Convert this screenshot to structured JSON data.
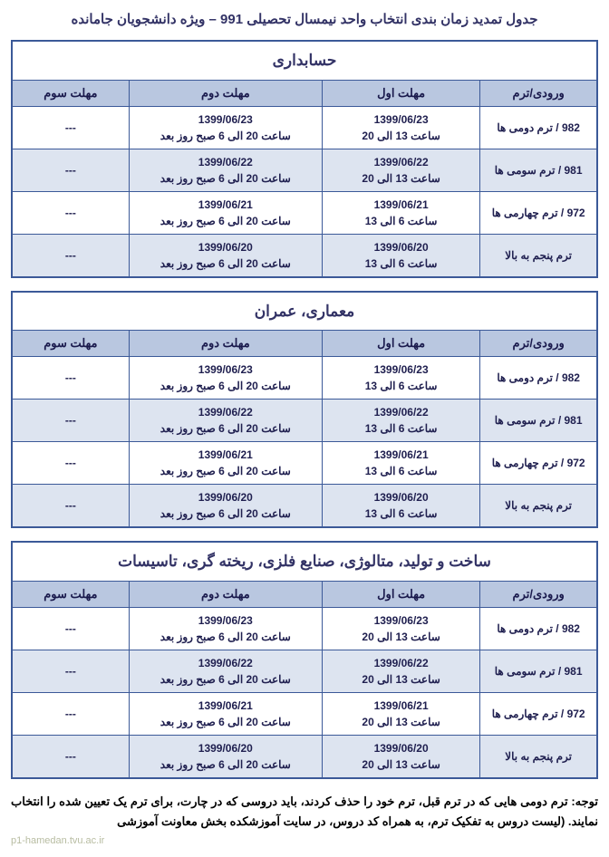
{
  "page_title": "جدول تمدید زمان بندی انتخاب واحد نیمسال تحصیلی 991 – ویژه دانشجویان جامانده",
  "columns": {
    "entry": "ورودی/ترم",
    "deadline1": "مهلت اول",
    "deadline2": "مهلت دوم",
    "deadline3": "مهلت سوم"
  },
  "dash": "---",
  "sections": [
    {
      "name": "حسابداری",
      "rows": [
        {
          "entry": "982 / ترم دومی ها",
          "d1_date": "1399/06/23",
          "d1_time": "ساعت 13 الی 20",
          "d2_date": "1399/06/23",
          "d2_time": "ساعت 20 الی 6 صبح روز بعد"
        },
        {
          "entry": "981 / ترم سومی ها",
          "d1_date": "1399/06/22",
          "d1_time": "ساعت 13 الی 20",
          "d2_date": "1399/06/22",
          "d2_time": "ساعت 20 الی 6 صبح روز بعد"
        },
        {
          "entry": "972 / ترم چهارمی ها",
          "d1_date": "1399/06/21",
          "d1_time": "ساعت 6 الی 13",
          "d2_date": "1399/06/21",
          "d2_time": "ساعت 20 الی 6 صبح روز بعد"
        },
        {
          "entry": "ترم پنجم به بالا",
          "d1_date": "1399/06/20",
          "d1_time": "ساعت 6 الی 13",
          "d2_date": "1399/06/20",
          "d2_time": "ساعت 20 الی 6 صبح روز بعد"
        }
      ]
    },
    {
      "name": "معماری، عمران",
      "rows": [
        {
          "entry": "982 / ترم دومی ها",
          "d1_date": "1399/06/23",
          "d1_time": "ساعت 6 الی 13",
          "d2_date": "1399/06/23",
          "d2_time": "ساعت 20 الی 6 صبح روز بعد"
        },
        {
          "entry": "981 / ترم سومی ها",
          "d1_date": "1399/06/22",
          "d1_time": "ساعت 6 الی 13",
          "d2_date": "1399/06/22",
          "d2_time": "ساعت 20 الی 6 صبح روز بعد"
        },
        {
          "entry": "972 / ترم چهارمی ها",
          "d1_date": "1399/06/21",
          "d1_time": "ساعت 6 الی 13",
          "d2_date": "1399/06/21",
          "d2_time": "ساعت 20 الی 6 صبح روز بعد"
        },
        {
          "entry": "ترم پنجم به بالا",
          "d1_date": "1399/06/20",
          "d1_time": "ساعت 6 الی 13",
          "d2_date": "1399/06/20",
          "d2_time": "ساعت 20 الی 6 صبح روز بعد"
        }
      ]
    },
    {
      "name": "ساخت و تولید، متالوژی، صنایع فلزی، ریخته گری، تاسیسات",
      "rows": [
        {
          "entry": "982 / ترم دومی ها",
          "d1_date": "1399/06/23",
          "d1_time": "ساعت 13 الی 20",
          "d2_date": "1399/06/23",
          "d2_time": "ساعت 20 الی 6 صبح روز بعد"
        },
        {
          "entry": "981 / ترم سومی ها",
          "d1_date": "1399/06/22",
          "d1_time": "ساعت 13 الی 20",
          "d2_date": "1399/06/22",
          "d2_time": "ساعت 20 الی 6 صبح روز بعد"
        },
        {
          "entry": "972 / ترم چهارمی ها",
          "d1_date": "1399/06/21",
          "d1_time": "ساعت 13 الی 20",
          "d2_date": "1399/06/21",
          "d2_time": "ساعت 20 الی 6 صبح روز بعد"
        },
        {
          "entry": "ترم پنجم به بالا",
          "d1_date": "1399/06/20",
          "d1_time": "ساعت 13 الی 20",
          "d2_date": "1399/06/20",
          "d2_time": "ساعت 20 الی 6 صبح روز بعد"
        }
      ]
    }
  ],
  "note": "توجه: ترم دومی هایی که در ترم قبل، ترم خود را حذف کردند، باید دروسی که در چارت، برای ترم یک تعیین شده را انتخاب نمایند. (لیست دروس به تفکیک ترم، به همراه کد دروس، در سایت آموزشکده بخش معاونت آموزشی",
  "watermark": "p1-hamedan.tvu.ac.ir"
}
